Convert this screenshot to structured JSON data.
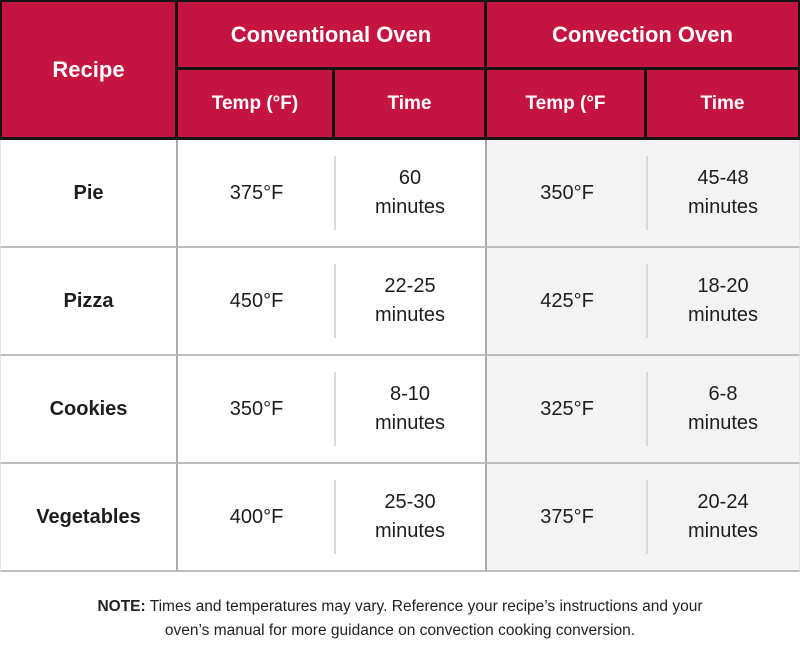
{
  "colors": {
    "header_bg": "#C4143F",
    "header_border": "#161616",
    "header_text": "#FFFFFF",
    "body_text": "#1D1D1D",
    "row_border": "#BDBDBD",
    "col_border": "#ABABAB",
    "inset_divider": "#D9D9D9",
    "convection_bg": "#F3F3F3",
    "outer_edge": "#E8E8E8"
  },
  "table": {
    "header": {
      "recipe": "Recipe",
      "conventional_group": "Conventional Oven",
      "convection_group": "Convection Oven",
      "conventional_temp": "Temp (°F)",
      "conventional_time": "Time",
      "convection_temp": "Temp (°F",
      "convection_time": "Time"
    },
    "rows": [
      {
        "recipe": "Pie",
        "conventional": {
          "temp": "375°F",
          "time_value": "60",
          "time_unit": "minutes"
        },
        "convection": {
          "temp": "350°F",
          "time_value": "45-48",
          "time_unit": "minutes"
        }
      },
      {
        "recipe": "Pizza",
        "conventional": {
          "temp": "450°F",
          "time_value": "22-25",
          "time_unit": "minutes"
        },
        "convection": {
          "temp": "425°F",
          "time_value": "18-20",
          "time_unit": "minutes"
        }
      },
      {
        "recipe": "Cookies",
        "conventional": {
          "temp": "350°F",
          "time_value": "8-10",
          "time_unit": "minutes"
        },
        "convection": {
          "temp": "325°F",
          "time_value": "6-8",
          "time_unit": "minutes"
        }
      },
      {
        "recipe": "Vegetables",
        "conventional": {
          "temp": "400°F",
          "time_value": "25-30",
          "time_unit": "minutes"
        },
        "convection": {
          "temp": "375°F",
          "time_value": "20-24",
          "time_unit": "minutes"
        }
      }
    ]
  },
  "note": {
    "label": "NOTE:",
    "text": "Times and temperatures may vary. Reference your recipe’s instructions and your oven’s manual for more guidance on convection cooking conversion."
  }
}
